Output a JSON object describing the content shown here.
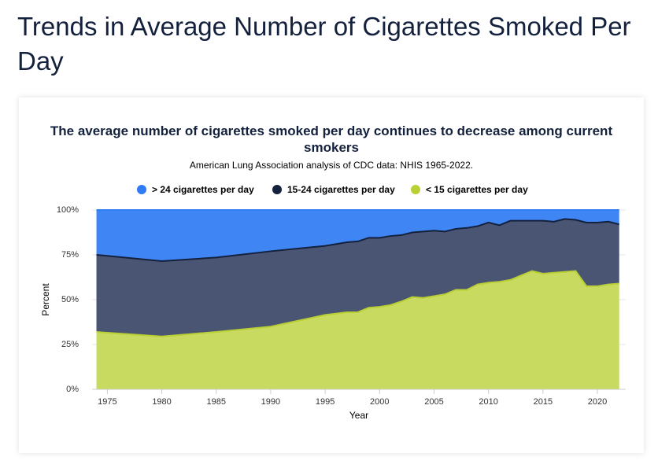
{
  "page_title": "Trends in Average Number of Cigarettes Smoked Per Day",
  "chart_data": {
    "type": "stacked-area",
    "title": "The average number of cigarettes smoked per day continues to decrease among current smokers",
    "subtitle": "American Lung Association analysis of CDC data: NHIS 1965-2022.",
    "x_label": "Year",
    "y_label": "Percent",
    "x": [
      1974,
      1980,
      1985,
      1990,
      1995,
      1997,
      1998,
      1999,
      2000,
      2001,
      2002,
      2003,
      2004,
      2005,
      2006,
      2007,
      2008,
      2009,
      2010,
      2011,
      2012,
      2013,
      2014,
      2015,
      2016,
      2017,
      2018,
      2019,
      2020,
      2021,
      2022
    ],
    "series": [
      {
        "name": "> 24 cigarettes per day",
        "color": "#2f7cf6",
        "values": [
          25,
          28.5,
          26.5,
          23,
          20,
          18,
          17.5,
          15.5,
          15.5,
          14.5,
          14,
          12.5,
          12,
          11.5,
          12,
          10.5,
          10,
          9,
          7,
          8.5,
          6,
          6,
          6,
          6,
          6.5,
          5,
          5.5,
          7,
          7,
          6.5,
          8
        ]
      },
      {
        "name": "15-24 cigarettes per day",
        "color": "#14213d",
        "values": [
          43,
          42,
          41.5,
          42,
          38.5,
          39,
          39.5,
          39,
          38.5,
          38.5,
          37,
          36,
          37,
          36.5,
          35,
          34,
          34.5,
          32.5,
          33.5,
          31.5,
          33,
          30.5,
          28,
          29.5,
          28.5,
          29.5,
          28.5,
          35.5,
          35.5,
          35,
          33
        ]
      },
      {
        "name": "< 15 cigarettes per day",
        "color": "#b9cf34",
        "values": [
          32,
          29.5,
          32,
          35,
          41.5,
          43,
          43,
          45.5,
          46,
          47,
          49,
          51.5,
          51,
          52,
          53,
          55.5,
          55.5,
          58.5,
          59.5,
          60,
          61,
          63.5,
          66,
          64.5,
          65,
          65.5,
          66,
          57.5,
          57.5,
          58.5,
          59
        ]
      }
    ],
    "xlim": [
      1973.6,
      2022.6
    ],
    "xticks": [
      1975,
      1980,
      1985,
      1990,
      1995,
      2000,
      2005,
      2010,
      2015,
      2020
    ],
    "ylim": [
      0,
      100
    ],
    "yticks": [
      {
        "value": 0,
        "label": "0%"
      },
      {
        "value": 25,
        "label": "25%"
      },
      {
        "value": 50,
        "label": "50%"
      },
      {
        "value": 75,
        "label": "75%"
      },
      {
        "value": 100,
        "label": "100%"
      }
    ],
    "grid": true,
    "legend": "top"
  }
}
